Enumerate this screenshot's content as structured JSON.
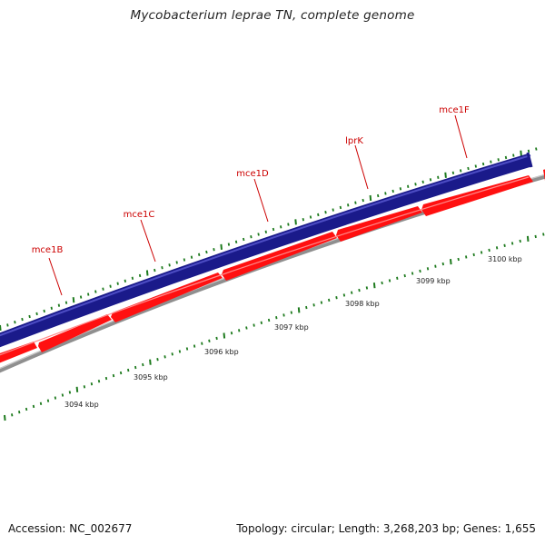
{
  "title": "Mycobacterium leprae TN, complete genome",
  "footer": {
    "accession": "Accession: NC_002677",
    "summary": "Topology: circular; Length: 3,268,203 bp; Genes: 1,655"
  },
  "colors": {
    "forward_track": "#1a1a8a",
    "reverse_track": "#ff1010",
    "backbone": "#8f8f8f",
    "gene_label": "#cc0000",
    "tick": "#1d7a1d",
    "tick_label": "#222222"
  },
  "genes": [
    {
      "name": "mce1B",
      "strand": "reverse"
    },
    {
      "name": "mce1C",
      "strand": "reverse"
    },
    {
      "name": "mce1D",
      "strand": "reverse"
    },
    {
      "name": "lprK",
      "strand": "reverse"
    },
    {
      "name": "mce1F",
      "strand": "reverse"
    }
  ],
  "scale": {
    "unit": "kbp",
    "labels": [
      "3094 kbp",
      "3095 kbp",
      "3096 kbp",
      "3097 kbp",
      "3098 kbp",
      "3099 kbp",
      "3100 kbp"
    ]
  }
}
